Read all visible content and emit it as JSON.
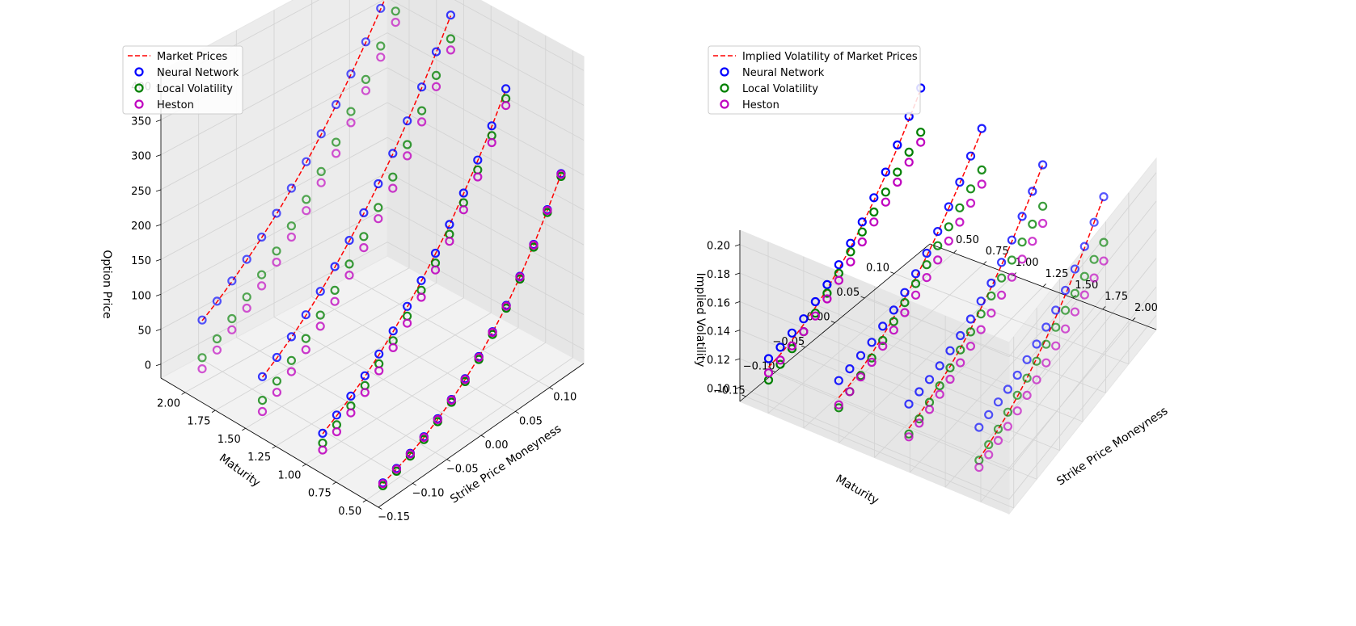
{
  "colors": {
    "market": "#ff0000",
    "neural_network": "#0000ff",
    "local_volatility": "#008000",
    "heston": "#bf00bf",
    "pane": "#f2f2f2",
    "grid": "#d4d4d4"
  },
  "chart_data": [
    {
      "type": "scatter",
      "projection": "3d",
      "zlabel": "Option Price",
      "xlabel": "Strike Price Moneyness",
      "ylabel": "Maturity",
      "xlim": [
        -0.15,
        0.15
      ],
      "ylim": [
        0.4,
        2.2
      ],
      "zlim": [
        -20,
        420
      ],
      "xticks": [
        "−0.15",
        "−0.10",
        "−0.05",
        "0.00",
        "0.05",
        "0.10"
      ],
      "yticks": [
        "0.50",
        "0.75",
        "1.00",
        "1.25",
        "1.50",
        "1.75",
        "2.00"
      ],
      "zticks": [
        "0",
        "50",
        "100",
        "150",
        "200",
        "250",
        "300",
        "350",
        "400"
      ],
      "legend": [
        "Market Prices",
        "Neural Network",
        "Local Volatility",
        "Heston"
      ],
      "maturities": [
        0.42,
        0.92,
        1.42,
        1.92
      ],
      "moneyness": [
        -0.14,
        -0.12,
        -0.1,
        -0.08,
        -0.06,
        -0.04,
        -0.02,
        0.0,
        0.02,
        0.04,
        0.06,
        0.08,
        0.1,
        0.12
      ],
      "series": [
        {
          "name": "Market Prices",
          "style": "dashed-line",
          "values": [
            [
              5,
              12,
              20,
              30,
              42,
              56,
              72,
              90,
              112,
              136,
              164,
              196,
              232,
              270
            ],
            [
              25,
              38,
              52,
              68,
              86,
              106,
              128,
              152,
              178,
              206,
              238,
              272,
              308,
              348
            ],
            [
              55,
              70,
              87,
              106,
              127,
              150,
              175,
              202,
              231,
              262,
              296,
              332,
              370,
              410
            ],
            [
              85,
              100,
              117,
              136,
              156,
              178,
              202,
              228,
              256,
              286,
              318,
              352,
              388,
              426
            ]
          ]
        },
        {
          "name": "Neural Network",
          "style": "open-circle",
          "values": [
            [
              6,
              13,
              21,
              31,
              43,
              57,
              73,
              91,
              113,
              137,
              165,
              197,
              233,
              271
            ],
            [
              26,
              39,
              53,
              69,
              87,
              107,
              129,
              153,
              179,
              207,
              239,
              273,
              309,
              349
            ],
            [
              56,
              71,
              88,
              107,
              128,
              151,
              176,
              203,
              232,
              263,
              297,
              333,
              371,
              411
            ],
            [
              86,
              101,
              118,
              137,
              157,
              179,
              203,
              229,
              257,
              287,
              319,
              353,
              389,
              427
            ]
          ]
        },
        {
          "name": "Local Volatility",
          "style": "open-circle",
          "values": [
            [
              2,
              9,
              17,
              27,
              39,
              53,
              69,
              87,
              109,
              133,
              161,
              193,
              229,
              267
            ],
            [
              12,
              25,
              39,
              55,
              73,
              93,
              115,
              139,
              165,
              193,
              225,
              259,
              295,
              335
            ],
            [
              22,
              37,
              54,
              73,
              94,
              117,
              142,
              169,
              198,
              229,
              263,
              299,
              337,
              377
            ],
            [
              32,
              47,
              64,
              83,
              103,
              125,
              149,
              175,
              203,
              233,
              265,
              299,
              335,
              373
            ]
          ]
        },
        {
          "name": "Heston",
          "style": "open-circle",
          "values": [
            [
              5,
              12,
              20,
              30,
              42,
              56,
              72,
              90,
              112,
              136,
              164,
              196,
              232,
              270
            ],
            [
              2,
              15,
              29,
              45,
              63,
              83,
              105,
              129,
              155,
              183,
              215,
              249,
              285,
              325
            ],
            [
              6,
              21,
              38,
              57,
              78,
              101,
              126,
              153,
              182,
              213,
              247,
              283,
              321,
              361
            ],
            [
              16,
              31,
              48,
              67,
              87,
              109,
              133,
              159,
              187,
              217,
              249,
              283,
              319,
              357
            ]
          ]
        }
      ]
    },
    {
      "type": "scatter",
      "projection": "3d",
      "zlabel": "Implied Volatility",
      "xlabel": "Strike Price Moneyness",
      "ylabel": "Maturity",
      "xlim": [
        -0.16,
        0.16
      ],
      "ylim": [
        0.3,
        2.2
      ],
      "zlim": [
        0.09,
        0.21
      ],
      "xticks": [
        "−0.15",
        "−0.10",
        "−0.05",
        "0.00",
        "0.05",
        "0.10"
      ],
      "yticks": [
        "0.50",
        "0.75",
        "1.00",
        "1.25",
        "1.50",
        "1.75",
        "2.00"
      ],
      "zticks": [
        "0.10",
        "0.12",
        "0.14",
        "0.16",
        "0.18",
        "0.20"
      ],
      "legend": [
        "Implied Volatility of Market Prices",
        "Neural Network",
        "Local Volatility",
        "Heston"
      ],
      "maturities": [
        0.42,
        0.92,
        1.42,
        1.92
      ],
      "moneyness": [
        -0.14,
        -0.12,
        -0.1,
        -0.08,
        -0.06,
        -0.04,
        -0.02,
        0.0,
        0.02,
        0.04,
        0.06,
        0.08,
        0.1,
        0.12
      ],
      "series": [
        {
          "name": "Implied Volatility of Market Prices",
          "style": "dashed-line",
          "values": [
            [
              0.112,
              0.114,
              0.117,
              0.121,
              0.126,
              0.132,
              0.139,
              0.147,
              0.156,
              0.166,
              0.177,
              0.189,
              0.202,
              0.216
            ],
            [
              0.111,
              0.113,
              0.116,
              0.12,
              0.125,
              0.131,
              0.137,
              0.144,
              0.152,
              0.161,
              0.171,
              0.181,
              0.192,
              0.204
            ],
            [
              0.11,
              0.112,
              0.115,
              0.119,
              0.123,
              0.128,
              0.134,
              0.141,
              0.148,
              0.156,
              0.165,
              0.175,
              0.185,
              0.196
            ],
            [
              0.109,
              0.111,
              0.114,
              0.117,
              0.121,
              0.126,
              0.132,
              0.138,
              0.145,
              0.153,
              0.161,
              0.17,
              0.18,
              0.19
            ]
          ]
        },
        {
          "name": "Neural Network",
          "style": "open-circle",
          "values": [
            [
              0.118,
              0.119,
              0.122,
              0.125,
              0.13,
              0.135,
              0.142,
              0.15,
              0.158,
              0.168,
              0.179,
              0.191,
              0.204,
              0.217
            ],
            [
              0.123,
              0.124,
              0.126,
              0.128,
              0.132,
              0.136,
              0.141,
              0.147,
              0.154,
              0.162,
              0.172,
              0.182,
              0.193,
              0.205
            ],
            [
              0.127,
              0.128,
              0.129,
              0.131,
              0.134,
              0.137,
              0.141,
              0.146,
              0.151,
              0.158,
              0.166,
              0.175,
              0.185,
              0.196
            ],
            [
              0.131,
              0.132,
              0.133,
              0.134,
              0.136,
              0.139,
              0.142,
              0.146,
              0.15,
              0.156,
              0.163,
              0.171,
              0.18,
              0.19
            ]
          ]
        },
        {
          "name": "Local Volatility",
          "style": "open-circle",
          "values": [
            [
              0.103,
              0.107,
              0.111,
              0.116,
              0.122,
              0.129,
              0.136,
              0.144,
              0.151,
              0.158,
              0.165,
              0.172,
              0.179,
              0.186
            ],
            [
              0.104,
              0.108,
              0.112,
              0.117,
              0.122,
              0.128,
              0.134,
              0.14,
              0.146,
              0.152,
              0.158,
              0.164,
              0.17,
              0.176
            ],
            [
              0.106,
              0.109,
              0.113,
              0.117,
              0.122,
              0.127,
              0.132,
              0.137,
              0.142,
              0.147,
              0.152,
              0.157,
              0.162,
              0.167
            ],
            [
              0.108,
              0.111,
              0.114,
              0.118,
              0.122,
              0.126,
              0.13,
              0.134,
              0.138,
              0.142,
              0.146,
              0.15,
              0.154,
              0.158
            ]
          ]
        },
        {
          "name": "Heston",
          "style": "open-circle",
          "values": [
            [
              0.108,
              0.11,
              0.113,
              0.116,
              0.12,
              0.125,
              0.131,
              0.137,
              0.144,
              0.151,
              0.158,
              0.165,
              0.172,
              0.179
            ],
            [
              0.106,
              0.108,
              0.111,
              0.114,
              0.118,
              0.122,
              0.127,
              0.132,
              0.137,
              0.142,
              0.148,
              0.154,
              0.16,
              0.166
            ],
            [
              0.104,
              0.106,
              0.108,
              0.111,
              0.114,
              0.118,
              0.122,
              0.126,
              0.13,
              0.135,
              0.14,
              0.145,
              0.15,
              0.155
            ],
            [
              0.103,
              0.104,
              0.106,
              0.108,
              0.111,
              0.114,
              0.117,
              0.121,
              0.125,
              0.129,
              0.133,
              0.137,
              0.141,
              0.145
            ]
          ]
        }
      ]
    }
  ]
}
